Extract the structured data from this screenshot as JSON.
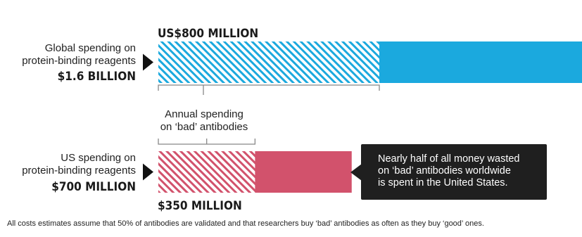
{
  "chart_data": {
    "type": "bar",
    "unit": "US$",
    "series": [
      {
        "label_line1": "Global spending on",
        "label_line2": "protein-binding reagents",
        "total_label": "$1.6 BILLION",
        "total": 1600,
        "bad_label": "US$800 MILLION",
        "bad": 800,
        "color": "#1ba9de"
      },
      {
        "label_line1": "US spending on",
        "label_line2": "protein-binding reagents",
        "total_label": "$700 MILLION",
        "total": 700,
        "bad_label": "$350 MILLION",
        "bad": 350,
        "color": "#d2526c"
      }
    ],
    "bracket_annotation": {
      "line1": "Annual spending",
      "line2": "on ‘bad’ antibodies"
    },
    "callout": {
      "line1": "Nearly half of all money wasted",
      "line2": "on ‘bad’ antibodies worldwide",
      "line3": "is spent in the United States."
    },
    "footnote": "All costs estimates assume that 50% of antibodies are validated and that researchers buy ‘bad’ antibodies as often as they buy ‘good’ ones."
  }
}
